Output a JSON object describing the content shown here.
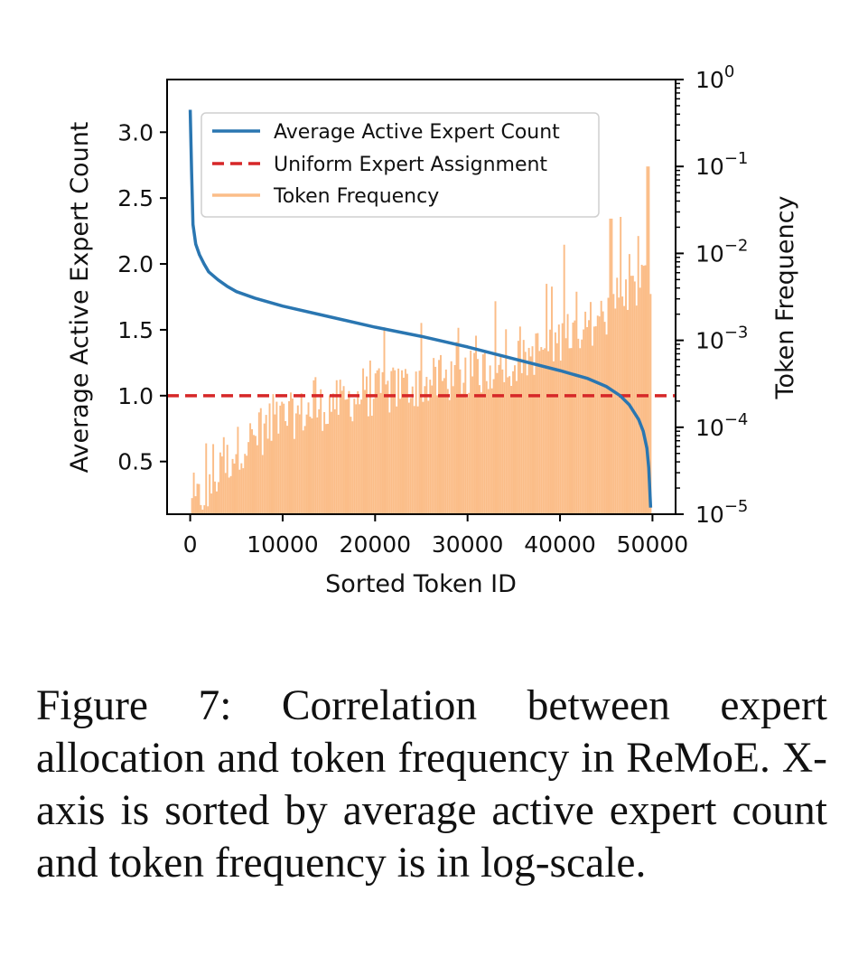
{
  "chart_data": {
    "type": "line+bar",
    "x_axis": {
      "label": "Sorted Token ID",
      "range": [
        -2500,
        52500
      ],
      "ticks": [
        0,
        10000,
        20000,
        30000,
        40000,
        50000
      ],
      "tick_labels": [
        "0",
        "10000",
        "20000",
        "30000",
        "40000",
        "50000"
      ]
    },
    "y_axis_left": {
      "label": "Average Active Expert Count",
      "range": [
        0.1,
        3.4
      ],
      "ticks": [
        0.5,
        1.0,
        1.5,
        2.0,
        2.5,
        3.0
      ],
      "tick_labels": [
        "0.5",
        "1.0",
        "1.5",
        "2.0",
        "2.5",
        "3.0"
      ]
    },
    "y_axis_right": {
      "label": "Token Frequency",
      "scale": "log",
      "range": [
        1e-05,
        1
      ],
      "ticks": [
        1e-05,
        0.0001,
        0.001,
        0.01,
        0.1,
        1
      ],
      "tick_labels": [
        {
          "base": "10",
          "exp": "−5"
        },
        {
          "base": "10",
          "exp": "−4"
        },
        {
          "base": "10",
          "exp": "−3"
        },
        {
          "base": "10",
          "exp": "−2"
        },
        {
          "base": "10",
          "exp": "−1"
        },
        {
          "base": "10",
          "exp": "0"
        }
      ]
    },
    "legend": {
      "position": "top-center",
      "entries": [
        {
          "label": "Average Active Expert Count",
          "style": "solid",
          "color": "#2a76b1"
        },
        {
          "label": "Uniform Expert Assignment",
          "style": "dashed",
          "color": "#d62728"
        },
        {
          "label": "Token Frequency",
          "style": "solid",
          "color": "#fbbd88"
        }
      ]
    },
    "series": [
      {
        "name": "Average Active Expert Count",
        "axis": "left",
        "color": "#2a76b1",
        "x": [
          0,
          150,
          300,
          600,
          1000,
          1500,
          2000,
          3000,
          4000,
          5000,
          7000,
          10000,
          15000,
          20000,
          25000,
          30000,
          35000,
          40000,
          43000,
          45000,
          46500,
          47500,
          48500,
          49000,
          49400,
          49600,
          49800
        ],
        "y": [
          3.17,
          2.7,
          2.3,
          2.15,
          2.07,
          2.0,
          1.94,
          1.88,
          1.83,
          1.79,
          1.74,
          1.68,
          1.6,
          1.52,
          1.45,
          1.37,
          1.28,
          1.19,
          1.13,
          1.07,
          1.0,
          0.93,
          0.82,
          0.73,
          0.6,
          0.45,
          0.15
        ]
      },
      {
        "name": "Uniform Expert Assignment",
        "axis": "left",
        "color": "#d62728",
        "y": 1.0
      },
      {
        "name": "Token Frequency",
        "axis": "right",
        "color": "#fbbd88",
        "trend_log10": {
          "x": [
            500,
            5000,
            10000,
            20000,
            30000,
            35000,
            40000,
            45000,
            47000,
            49500
          ],
          "y": [
            -4.9,
            -4.25,
            -3.9,
            -3.6,
            -3.4,
            -3.25,
            -3.0,
            -2.7,
            -2.5,
            -2.3
          ]
        },
        "spikes_log10": {
          "x": [
            21000,
            25000,
            33000,
            38500,
            40500,
            45500,
            46500,
            48500,
            49500
          ],
          "y": [
            -2.85,
            -2.8,
            -2.55,
            -2.35,
            -1.9,
            -1.6,
            -1.58,
            -1.8,
            -1.0
          ]
        }
      }
    ]
  },
  "caption": "Figure 7:  Correlation between expert allocation and token frequency in ReMoE. X-axis is sorted by average active expert count and token frequency is in log-scale."
}
